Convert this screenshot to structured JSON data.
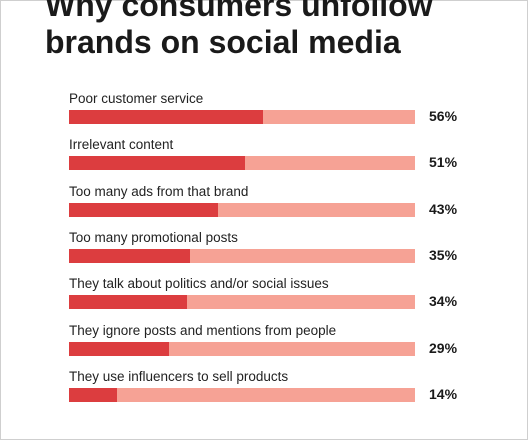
{
  "chart_data": {
    "type": "bar",
    "orientation": "horizontal",
    "title_lines": [
      "Why consumers unfollow",
      "brands on social media"
    ],
    "xlim": [
      0,
      100
    ],
    "value_suffix": "%",
    "colors": {
      "fill": "#dc3d3f",
      "track": "#f6a295"
    },
    "categories": [
      "Poor customer service",
      "Irrelevant content",
      "Too many ads from that brand",
      "Too many promotional posts",
      "They talk about politics and/or social issues",
      "They ignore posts and mentions from people",
      "They use influencers to sell products"
    ],
    "values": [
      56,
      51,
      43,
      35,
      34,
      29,
      14
    ],
    "value_labels": [
      "56%",
      "51%",
      "43%",
      "35%",
      "34%",
      "29%",
      "14%"
    ]
  }
}
